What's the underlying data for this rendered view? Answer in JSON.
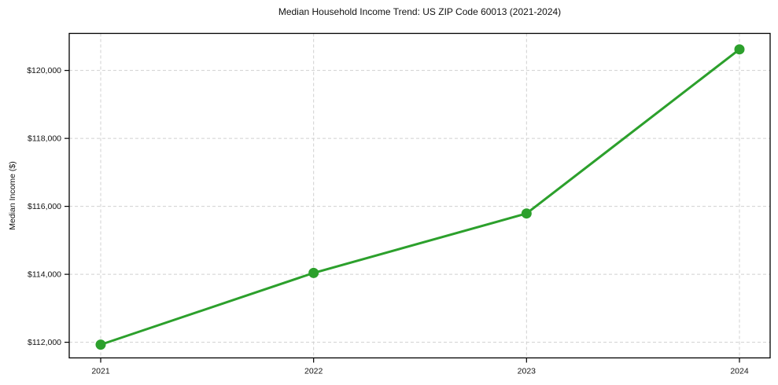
{
  "chart_data": {
    "type": "line",
    "title": "Median Household Income Trend: US ZIP Code 60013 (2021-2024)",
    "xlabel": "",
    "ylabel": "Median Income ($)",
    "x": [
      "2021",
      "2022",
      "2023",
      "2024"
    ],
    "series": [
      {
        "name": "Median Household Income",
        "values": [
          111930,
          114040,
          115790,
          120620
        ]
      }
    ],
    "y_ticks": [
      {
        "value": 112000,
        "label": "$112,000"
      },
      {
        "value": 114000,
        "label": "$114,000"
      },
      {
        "value": 116000,
        "label": "$116,000"
      },
      {
        "value": 118000,
        "label": "$118,000"
      },
      {
        "value": 120000,
        "label": "$120,000"
      }
    ],
    "ylim": [
      111540,
      121090
    ],
    "grid": true,
    "legend_position": "none",
    "colors": {
      "line": "#2ca02c",
      "marker": "#2ca02c",
      "grid": "#d0d0d0",
      "axis": "#000000",
      "text": "#111111",
      "background": "#ffffff"
    }
  }
}
